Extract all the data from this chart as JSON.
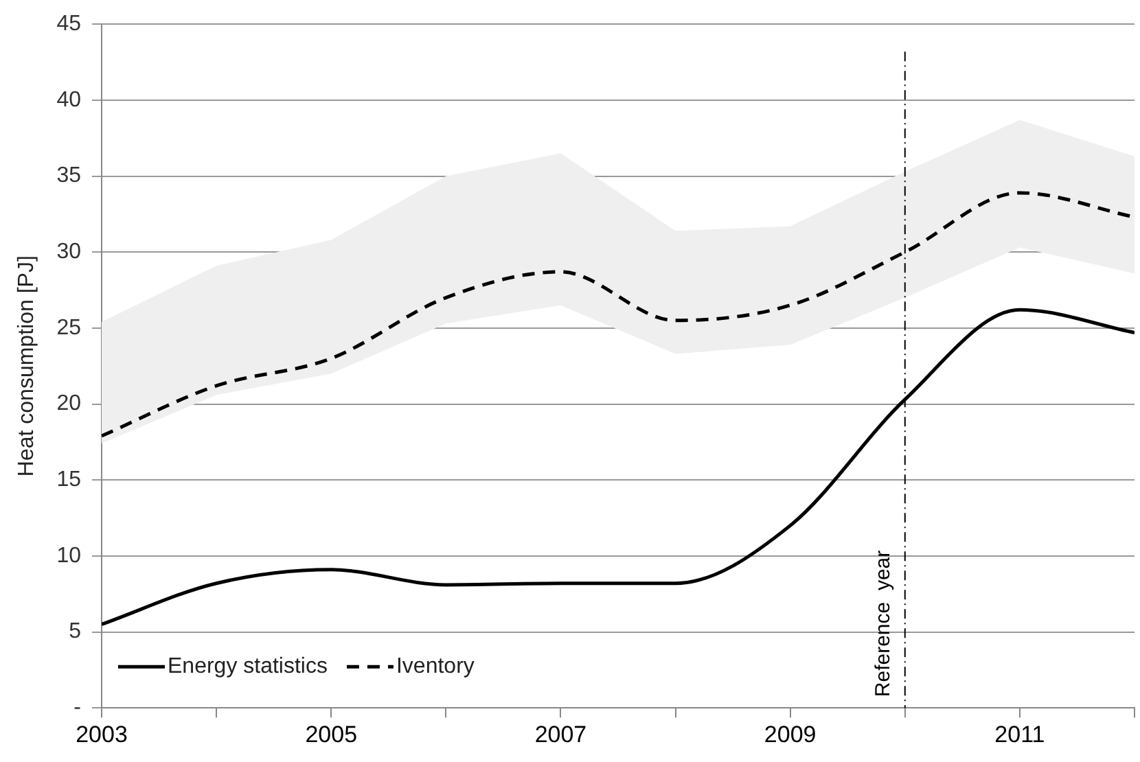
{
  "chart_data": {
    "type": "line",
    "ylabel": "Heat consumption [PJ]",
    "x": [
      2003,
      2004,
      2005,
      2006,
      2007,
      2008,
      2009,
      2010,
      2011,
      2012
    ],
    "series": [
      {
        "name": "Energy statistics",
        "color": "#000000",
        "line_style": "solid",
        "values": [
          5.5,
          8.2,
          9.1,
          8.1,
          8.2,
          8.2,
          12.0,
          20.3,
          26.2,
          24.7
        ]
      },
      {
        "name": "Iventory",
        "color": "#000000",
        "line_style": "dashed",
        "values": [
          17.9,
          21.2,
          23.0,
          27.0,
          28.7,
          25.5,
          26.5,
          30.0,
          33.9,
          32.3
        ],
        "lower": [
          17.4,
          20.6,
          22.0,
          25.3,
          26.5,
          23.3,
          23.9,
          27.0,
          30.3,
          28.6
        ],
        "upper": [
          25.4,
          29.1,
          30.8,
          35.0,
          36.5,
          31.4,
          31.7,
          35.3,
          38.7,
          36.3
        ]
      }
    ],
    "xlim": [
      2003,
      2012
    ],
    "xticks": [
      2003,
      {
        "value": 2004,
        "label": null
      },
      2005,
      {
        "value": 2006,
        "label": null
      },
      2007,
      {
        "value": 2008,
        "label": null
      },
      2009,
      {
        "value": 2010,
        "label": null
      },
      2011,
      {
        "value": 2012,
        "label": null
      }
    ],
    "ylim": [
      0,
      45
    ],
    "yticks": [
      {
        "value": 0,
        "label": "-"
      },
      5,
      10,
      15,
      20,
      25,
      30,
      35,
      40,
      45
    ],
    "ref_lines": [
      {
        "axis": "x",
        "value": 2010,
        "label": "Reference  year",
        "color": "#000000"
      }
    ],
    "grid": "y",
    "legend": "bottom left",
    "marker": "none"
  }
}
